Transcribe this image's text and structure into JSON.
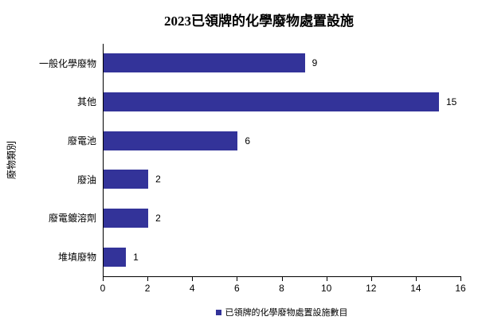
{
  "chart_data": {
    "type": "bar",
    "orientation": "horizontal",
    "title": "2023已領牌的化學廢物處置設施",
    "ylabel": "廢物類別",
    "xlabel": "",
    "categories": [
      "一般化學廢物",
      "其他",
      "廢電池",
      "廢油",
      "廢電鍍溶劑",
      "堆填廢物"
    ],
    "values": [
      9,
      15,
      6,
      2,
      2,
      1
    ],
    "xlim": [
      0,
      16
    ],
    "xticks": [
      0,
      2,
      4,
      6,
      8,
      10,
      12,
      14,
      16
    ],
    "grid": false,
    "bar_color": "#333399",
    "axis_color": "#000000",
    "legend_position": "bottom",
    "legend": [
      {
        "label": "已領牌的化學廢物處置設施數目",
        "color": "#333399"
      }
    ]
  }
}
